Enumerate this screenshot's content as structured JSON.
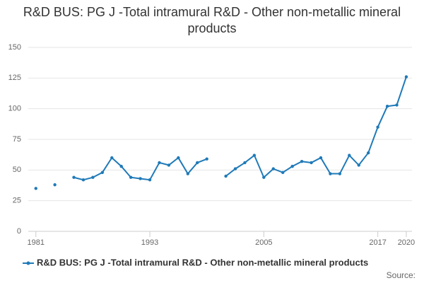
{
  "chart_data": {
    "type": "line",
    "title": "R&D BUS: PG J -Total intramural R&D - Other non-metallic mineral products",
    "x": [
      1981,
      1982,
      1983,
      1984,
      1985,
      1986,
      1987,
      1988,
      1989,
      1990,
      1991,
      1992,
      1993,
      1994,
      1995,
      1996,
      1997,
      1998,
      1999,
      2000,
      2001,
      2002,
      2003,
      2004,
      2005,
      2006,
      2007,
      2008,
      2009,
      2010,
      2011,
      2012,
      2013,
      2014,
      2015,
      2016,
      2017,
      2018,
      2019,
      2020
    ],
    "series": [
      {
        "name": "R&D BUS: PG J -Total intramural R&D - Other non-metallic mineral products",
        "color": "#1f7ab8",
        "values": [
          35,
          null,
          38,
          null,
          44,
          42,
          44,
          48,
          60,
          53,
          44,
          43,
          42,
          56,
          54,
          60,
          47,
          56,
          59,
          null,
          45,
          51,
          56,
          62,
          44,
          51,
          48,
          53,
          57,
          56,
          60,
          47,
          47,
          62,
          54,
          64,
          85,
          102,
          103,
          126
        ]
      }
    ],
    "xlim": [
      1980.2,
      2020.6
    ],
    "xticks": [
      1981,
      1993,
      2005,
      2017,
      2020
    ],
    "ylim": [
      0,
      150
    ],
    "yticks": [
      0,
      25,
      50,
      75,
      100,
      125,
      150
    ],
    "grid": true,
    "legend": "bottom",
    "source": "Source:"
  }
}
